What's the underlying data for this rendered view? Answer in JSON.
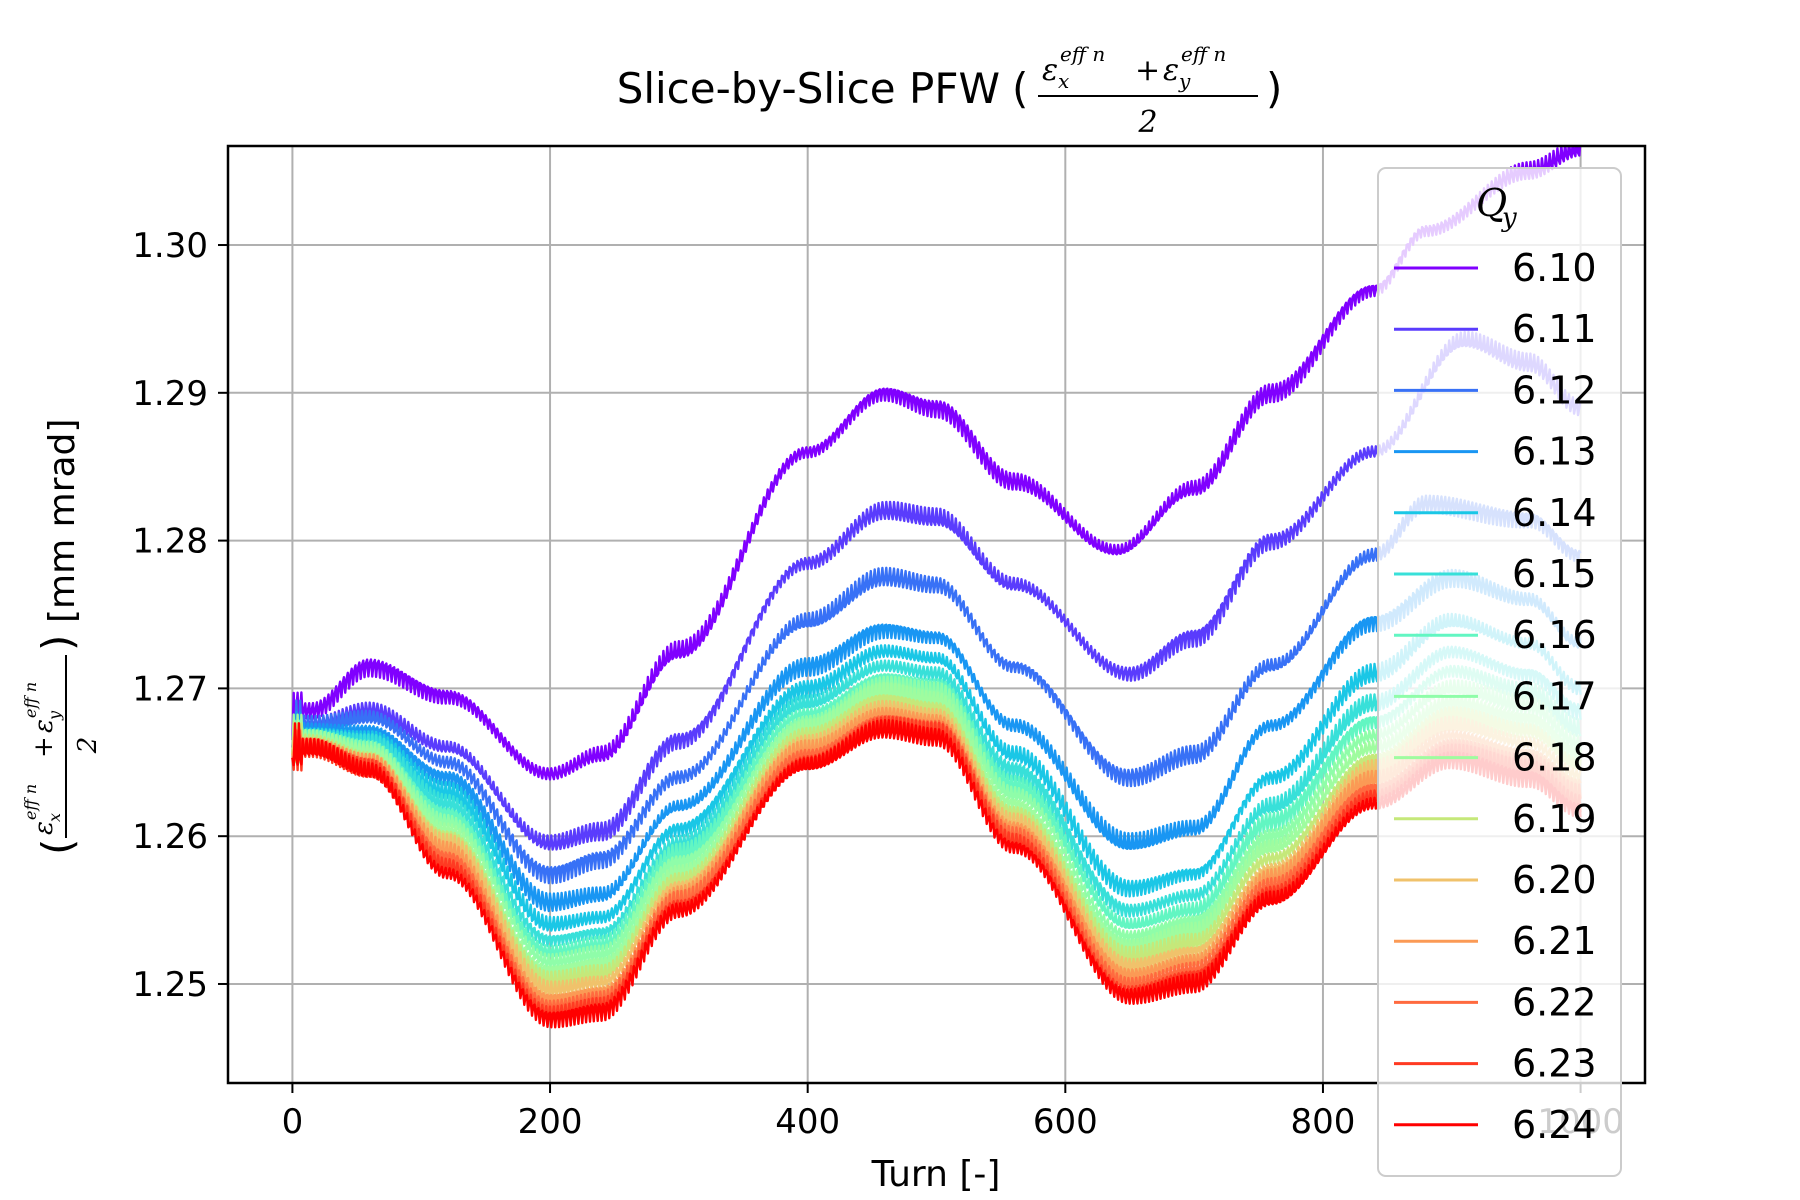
{
  "chart_data": {
    "type": "line",
    "title": "Slice-by-Slice PFW",
    "title_formula": {
      "num_left": "ε",
      "num_left_sub": "x",
      "num_left_sup": "eff n",
      "plus": "+",
      "num_right": "ε",
      "num_right_sub": "y",
      "num_right_sup": "eff n",
      "denominator": "2"
    },
    "xlabel": "Turn [-]",
    "ylabel_unit": "[mm mrad]",
    "xlim": [
      -50,
      1050
    ],
    "ylim": [
      1.2433,
      1.3067
    ],
    "xticks": [
      "0",
      "200",
      "400",
      "600",
      "800",
      "1000"
    ],
    "yticks": [
      "1.25",
      "1.26",
      "1.27",
      "1.28",
      "1.29",
      "1.30"
    ],
    "grid": true,
    "legend": {
      "title": "Q",
      "title_sub": "y",
      "placement": "upper-right"
    },
    "series": [
      {
        "name": "6.10",
        "color": "#8000ff",
        "y0": 1.2665,
        "keys": [
          [
            15,
            1.2685
          ],
          [
            60,
            1.2715
          ],
          [
            120,
            1.2695
          ],
          [
            200,
            1.2642
          ],
          [
            240,
            1.2655
          ],
          [
            300,
            1.2725
          ],
          [
            400,
            1.286
          ],
          [
            460,
            1.29
          ],
          [
            500,
            1.289
          ],
          [
            560,
            1.284
          ],
          [
            640,
            1.2793
          ],
          [
            700,
            1.2835
          ],
          [
            760,
            1.29
          ],
          [
            840,
            1.297
          ],
          [
            880,
            1.301
          ],
          [
            960,
            1.305
          ],
          [
            1000,
            1.3065
          ]
        ]
      },
      {
        "name": "6.11",
        "color": "#5a3cfd",
        "y0": 1.266,
        "keys": [
          [
            15,
            1.2675
          ],
          [
            60,
            1.2685
          ],
          [
            120,
            1.266
          ],
          [
            200,
            1.2595
          ],
          [
            240,
            1.2603
          ],
          [
            300,
            1.2665
          ],
          [
            400,
            1.2785
          ],
          [
            460,
            1.282
          ],
          [
            500,
            1.2815
          ],
          [
            560,
            1.277
          ],
          [
            650,
            1.271
          ],
          [
            700,
            1.2735
          ],
          [
            760,
            1.28
          ],
          [
            840,
            1.286
          ],
          [
            910,
            1.2935
          ],
          [
            960,
            1.292
          ],
          [
            1000,
            1.289
          ]
        ]
      },
      {
        "name": "6.12",
        "color": "#3871f6",
        "y0": 1.266,
        "keys": [
          [
            15,
            1.2675
          ],
          [
            60,
            1.268
          ],
          [
            120,
            1.265
          ],
          [
            200,
            1.2575
          ],
          [
            240,
            1.2585
          ],
          [
            300,
            1.264
          ],
          [
            400,
            1.2745
          ],
          [
            460,
            1.2775
          ],
          [
            500,
            1.277
          ],
          [
            560,
            1.2715
          ],
          [
            650,
            1.264
          ],
          [
            700,
            1.2655
          ],
          [
            760,
            1.2715
          ],
          [
            840,
            1.279
          ],
          [
            880,
            1.2825
          ],
          [
            960,
            1.2815
          ],
          [
            1000,
            1.279
          ]
        ]
      },
      {
        "name": "6.13",
        "color": "#1996f3",
        "y0": 1.2658,
        "keys": [
          [
            15,
            1.2672
          ],
          [
            60,
            1.2672
          ],
          [
            120,
            1.264
          ],
          [
            200,
            1.2555
          ],
          [
            240,
            1.256
          ],
          [
            300,
            1.262
          ],
          [
            400,
            1.2715
          ],
          [
            460,
            1.274
          ],
          [
            500,
            1.2735
          ],
          [
            560,
            1.2675
          ],
          [
            650,
            1.2595
          ],
          [
            700,
            1.2605
          ],
          [
            760,
            1.2675
          ],
          [
            840,
            1.2745
          ],
          [
            900,
            1.2775
          ],
          [
            960,
            1.276
          ],
          [
            1000,
            1.273
          ]
        ]
      },
      {
        "name": "6.14",
        "color": "#1ac7e6",
        "y0": 1.2658,
        "keys": [
          [
            15,
            1.267
          ],
          [
            60,
            1.2667
          ],
          [
            120,
            1.263
          ],
          [
            200,
            1.254
          ],
          [
            240,
            1.2545
          ],
          [
            300,
            1.2605
          ],
          [
            400,
            1.27
          ],
          [
            460,
            1.2725
          ],
          [
            500,
            1.272
          ],
          [
            560,
            1.2655
          ],
          [
            650,
            1.2565
          ],
          [
            700,
            1.2575
          ],
          [
            760,
            1.264
          ],
          [
            840,
            1.271
          ],
          [
            900,
            1.2745
          ],
          [
            960,
            1.273
          ],
          [
            1000,
            1.27
          ]
        ]
      },
      {
        "name": "6.15",
        "color": "#38e0d9",
        "y0": 1.2657,
        "keys": [
          [
            15,
            1.2668
          ],
          [
            60,
            1.2663
          ],
          [
            120,
            1.2622
          ],
          [
            200,
            1.253
          ],
          [
            240,
            1.2535
          ],
          [
            300,
            1.2595
          ],
          [
            400,
            1.269
          ],
          [
            460,
            1.2715
          ],
          [
            500,
            1.271
          ],
          [
            560,
            1.2645
          ],
          [
            650,
            1.255
          ],
          [
            700,
            1.256
          ],
          [
            760,
            1.262
          ],
          [
            840,
            1.269
          ],
          [
            900,
            1.2725
          ],
          [
            960,
            1.271
          ],
          [
            1000,
            1.2685
          ]
        ]
      },
      {
        "name": "6.16",
        "color": "#62f6c2",
        "y0": 1.2657,
        "keys": [
          [
            15,
            1.2667
          ],
          [
            60,
            1.266
          ],
          [
            120,
            1.2615
          ],
          [
            200,
            1.2522
          ],
          [
            240,
            1.2527
          ],
          [
            300,
            1.2588
          ],
          [
            400,
            1.2683
          ],
          [
            460,
            1.2707
          ],
          [
            500,
            1.2702
          ],
          [
            560,
            1.2635
          ],
          [
            650,
            1.254
          ],
          [
            700,
            1.255
          ],
          [
            760,
            1.261
          ],
          [
            840,
            1.2678
          ],
          [
            900,
            1.2712
          ],
          [
            960,
            1.2698
          ],
          [
            1000,
            1.2672
          ]
        ]
      },
      {
        "name": "6.17",
        "color": "#8ffda9",
        "y0": 1.2656,
        "keys": [
          [
            15,
            1.2666
          ],
          [
            60,
            1.2658
          ],
          [
            120,
            1.261
          ],
          [
            200,
            1.2515
          ],
          [
            240,
            1.252
          ],
          [
            300,
            1.2582
          ],
          [
            400,
            1.2678
          ],
          [
            460,
            1.2702
          ],
          [
            500,
            1.2697
          ],
          [
            560,
            1.2628
          ],
          [
            650,
            1.2532
          ],
          [
            700,
            1.2542
          ],
          [
            760,
            1.26
          ],
          [
            840,
            1.2668
          ],
          [
            900,
            1.27
          ],
          [
            960,
            1.2688
          ],
          [
            1000,
            1.2662
          ]
        ]
      },
      {
        "name": "6.18",
        "color": "#9ffc9f",
        "y0": 1.2656,
        "keys": [
          [
            15,
            1.2665
          ],
          [
            60,
            1.2656
          ],
          [
            120,
            1.2605
          ],
          [
            200,
            1.2508
          ],
          [
            240,
            1.2513
          ],
          [
            300,
            1.2576
          ],
          [
            400,
            1.2673
          ],
          [
            460,
            1.2697
          ],
          [
            500,
            1.2692
          ],
          [
            560,
            1.2622
          ],
          [
            650,
            1.2525
          ],
          [
            700,
            1.2535
          ],
          [
            760,
            1.2592
          ],
          [
            840,
            1.266
          ],
          [
            900,
            1.269
          ],
          [
            960,
            1.2679
          ],
          [
            1000,
            1.2655
          ]
        ]
      },
      {
        "name": "6.19",
        "color": "#c5e87a",
        "y0": 1.2655,
        "keys": [
          [
            15,
            1.2664
          ],
          [
            60,
            1.2654
          ],
          [
            120,
            1.26
          ],
          [
            200,
            1.2502
          ],
          [
            240,
            1.2507
          ],
          [
            300,
            1.2571
          ],
          [
            400,
            1.2668
          ],
          [
            460,
            1.2692
          ],
          [
            500,
            1.2687
          ],
          [
            560,
            1.2616
          ],
          [
            650,
            1.2518
          ],
          [
            700,
            1.2528
          ],
          [
            760,
            1.2585
          ],
          [
            840,
            1.2652
          ],
          [
            900,
            1.2682
          ],
          [
            960,
            1.2671
          ],
          [
            1000,
            1.2648
          ]
        ]
      },
      {
        "name": "6.20",
        "color": "#f0c26b",
        "y0": 1.2655,
        "keys": [
          [
            15,
            1.2663
          ],
          [
            60,
            1.2652
          ],
          [
            120,
            1.2595
          ],
          [
            200,
            1.2496
          ],
          [
            240,
            1.2501
          ],
          [
            300,
            1.2566
          ],
          [
            400,
            1.2663
          ],
          [
            460,
            1.2687
          ],
          [
            500,
            1.2682
          ],
          [
            560,
            1.261
          ],
          [
            650,
            1.2512
          ],
          [
            700,
            1.2522
          ],
          [
            760,
            1.2578
          ],
          [
            840,
            1.2645
          ],
          [
            900,
            1.2675
          ],
          [
            960,
            1.2663
          ],
          [
            1000,
            1.2641
          ]
        ]
      },
      {
        "name": "6.21",
        "color": "#fb9a55",
        "y0": 1.2654,
        "keys": [
          [
            15,
            1.2662
          ],
          [
            60,
            1.265
          ],
          [
            120,
            1.259
          ],
          [
            200,
            1.249
          ],
          [
            240,
            1.2495
          ],
          [
            300,
            1.2561
          ],
          [
            400,
            1.2659
          ],
          [
            460,
            1.2683
          ],
          [
            500,
            1.2678
          ],
          [
            560,
            1.2605
          ],
          [
            650,
            1.2506
          ],
          [
            700,
            1.2516
          ],
          [
            760,
            1.2572
          ],
          [
            840,
            1.2638
          ],
          [
            900,
            1.2668
          ],
          [
            960,
            1.2656
          ],
          [
            1000,
            1.2634
          ]
        ]
      },
      {
        "name": "6.22",
        "color": "#ff6a3f",
        "y0": 1.2654,
        "keys": [
          [
            15,
            1.2661
          ],
          [
            60,
            1.2648
          ],
          [
            120,
            1.2585
          ],
          [
            200,
            1.2485
          ],
          [
            240,
            1.249
          ],
          [
            300,
            1.2556
          ],
          [
            400,
            1.2655
          ],
          [
            460,
            1.2679
          ],
          [
            500,
            1.2674
          ],
          [
            560,
            1.26
          ],
          [
            650,
            1.25
          ],
          [
            700,
            1.251
          ],
          [
            760,
            1.2566
          ],
          [
            840,
            1.2632
          ],
          [
            900,
            1.2662
          ],
          [
            960,
            1.265
          ],
          [
            1000,
            1.2628
          ]
        ]
      },
      {
        "name": "6.23",
        "color": "#ff3a22",
        "y0": 1.2653,
        "keys": [
          [
            15,
            1.266
          ],
          [
            60,
            1.2646
          ],
          [
            120,
            1.258
          ],
          [
            200,
            1.248
          ],
          [
            240,
            1.2485
          ],
          [
            300,
            1.2552
          ],
          [
            400,
            1.2651
          ],
          [
            460,
            1.2675
          ],
          [
            500,
            1.267
          ],
          [
            560,
            1.2596
          ],
          [
            650,
            1.2495
          ],
          [
            700,
            1.2505
          ],
          [
            760,
            1.2561
          ],
          [
            840,
            1.2627
          ],
          [
            900,
            1.2657
          ],
          [
            960,
            1.2645
          ],
          [
            1000,
            1.2622
          ]
        ]
      },
      {
        "name": "6.24",
        "color": "#ff0000",
        "y0": 1.2653,
        "keys": [
          [
            15,
            1.2659
          ],
          [
            60,
            1.2644
          ],
          [
            120,
            1.2575
          ],
          [
            200,
            1.2477
          ],
          [
            240,
            1.2482
          ],
          [
            300,
            1.255
          ],
          [
            400,
            1.2648
          ],
          [
            460,
            1.2672
          ],
          [
            500,
            1.2667
          ],
          [
            560,
            1.2593
          ],
          [
            650,
            1.2492
          ],
          [
            700,
            1.25
          ],
          [
            760,
            1.2557
          ],
          [
            840,
            1.2622
          ],
          [
            900,
            1.2652
          ],
          [
            960,
            1.264
          ],
          [
            1000,
            1.2618
          ]
        ]
      }
    ]
  }
}
